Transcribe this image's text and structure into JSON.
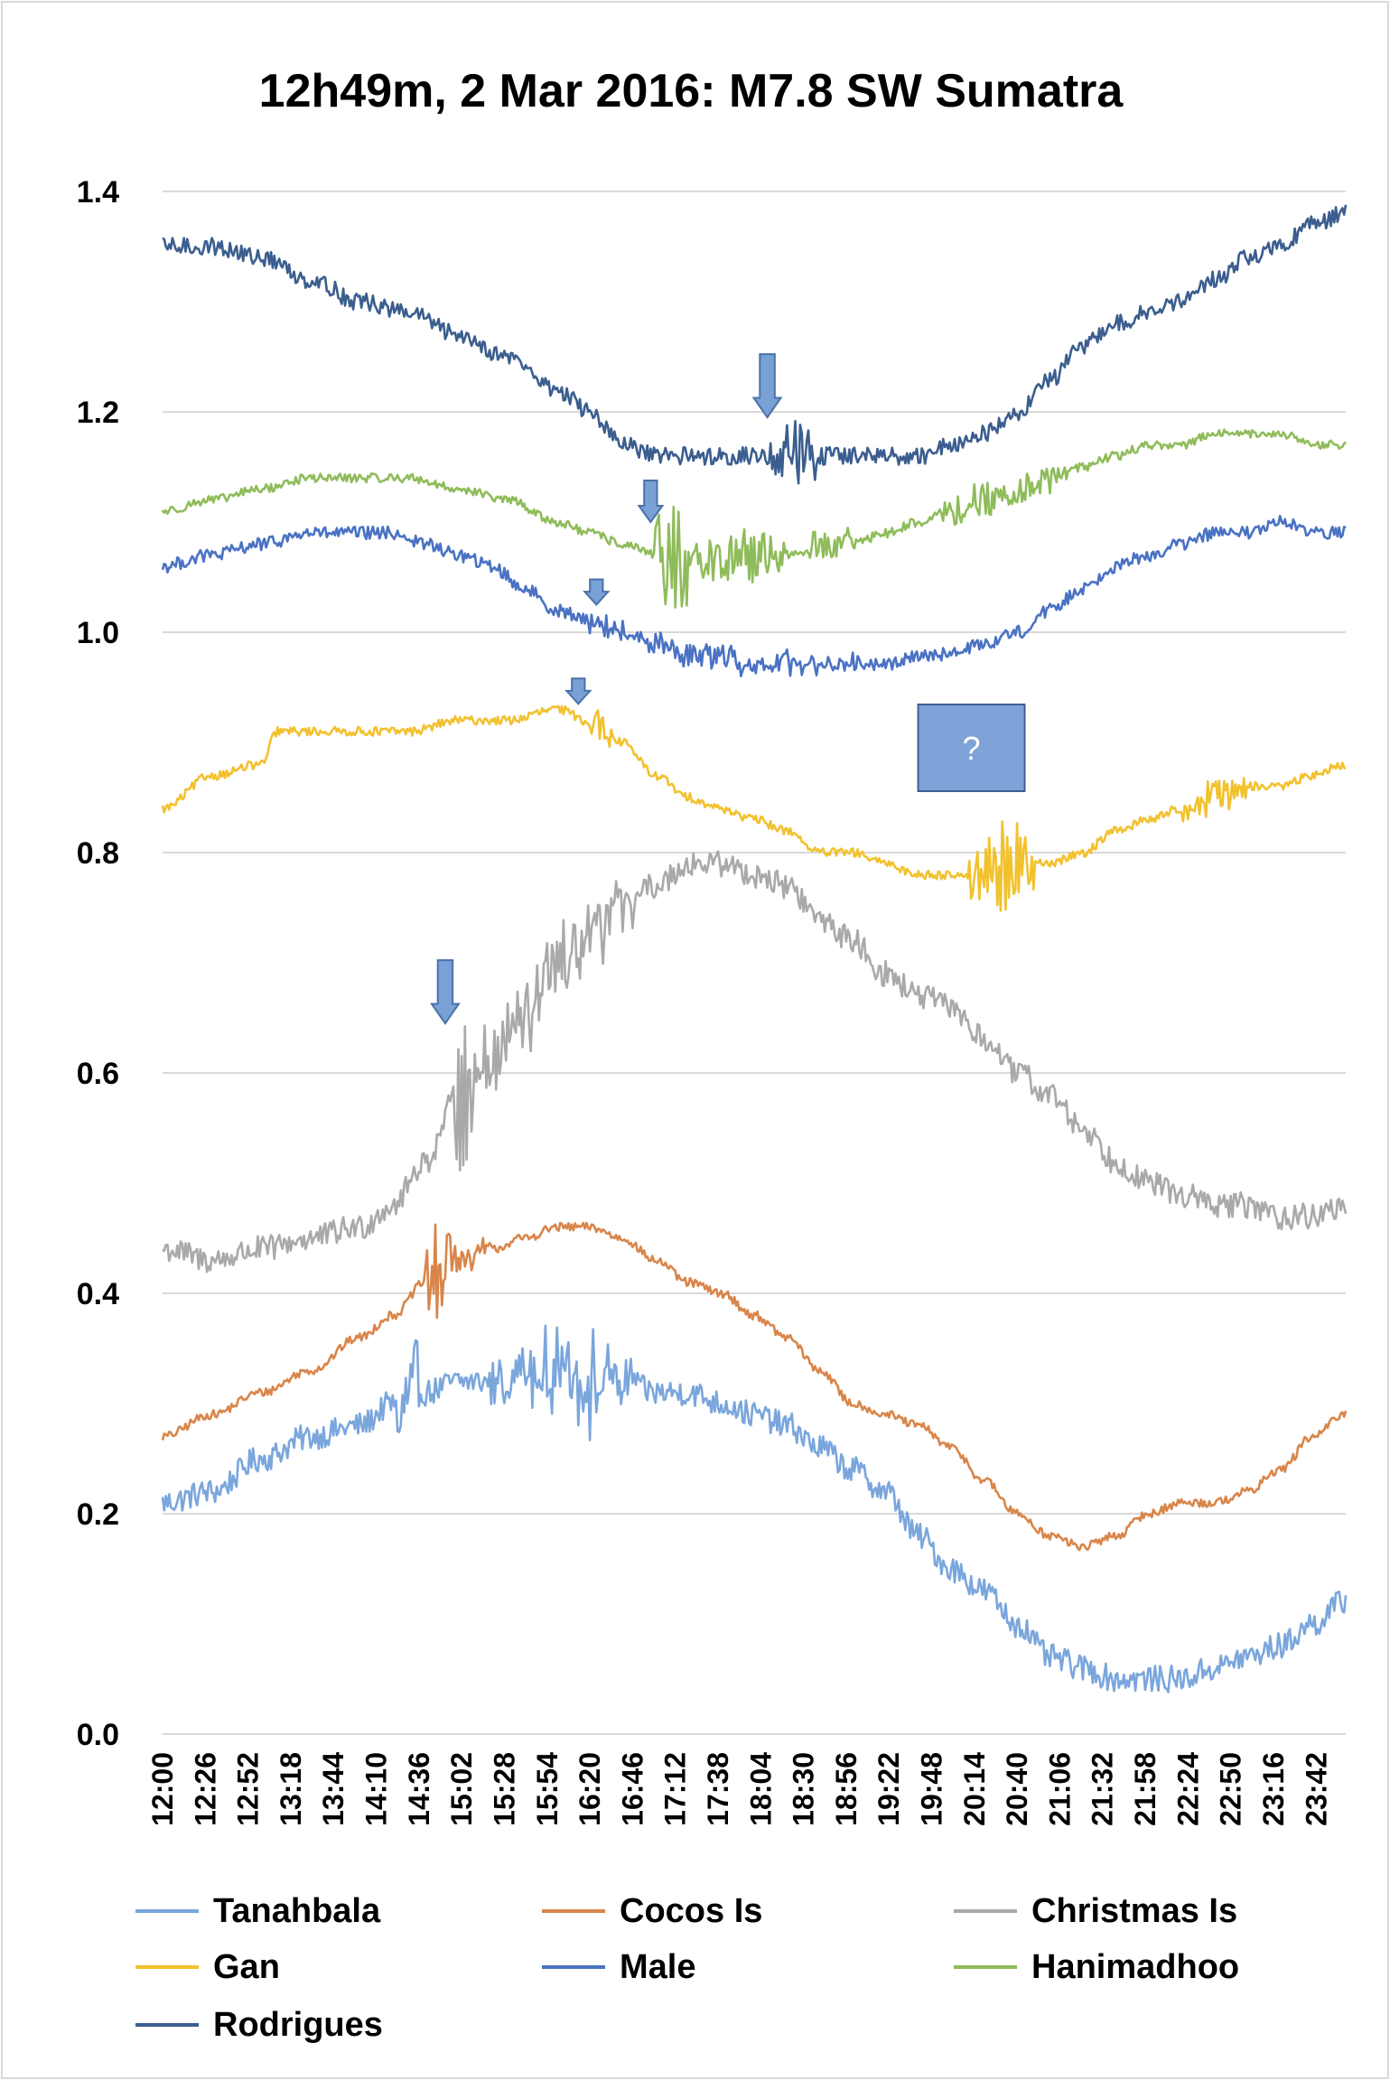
{
  "chart_data": {
    "type": "line",
    "title": "12h49m, 2 Mar 2016: M7.8 SW Sumatra",
    "xlabel": "",
    "ylabel": "",
    "ylim": [
      0,
      1.4
    ],
    "xlim_hours": [
      12.0,
      24.0
    ],
    "y_ticks": [
      "0.0",
      "0.2",
      "0.4",
      "0.6",
      "0.8",
      "1.0",
      "1.2",
      "1.4"
    ],
    "x_tick_labels": [
      "12:00",
      "12:26",
      "12:52",
      "13:18",
      "13:44",
      "14:10",
      "14:36",
      "15:02",
      "15:28",
      "15:54",
      "16:20",
      "16:46",
      "17:12",
      "17:38",
      "18:04",
      "18:30",
      "18:56",
      "19:22",
      "19:48",
      "20:14",
      "20:40",
      "21:06",
      "21:32",
      "21:58",
      "22:24",
      "22:50",
      "23:16",
      "23:42"
    ],
    "grid": "horizontal",
    "legend_position": "bottom",
    "series": [
      {
        "name": "Tanahbala",
        "color": "#7aa6dc",
        "x": [
          "12:00",
          "12:30",
          "13:00",
          "13:30",
          "14:00",
          "14:20",
          "14:40",
          "15:00",
          "15:20",
          "15:40",
          "16:00",
          "16:20",
          "16:40",
          "17:00",
          "17:20",
          "17:40",
          "18:00",
          "18:20",
          "18:40",
          "19:00",
          "19:20",
          "19:40",
          "20:00",
          "20:20",
          "20:40",
          "21:00",
          "21:20",
          "21:40",
          "22:00",
          "22:20",
          "22:40",
          "23:00",
          "23:20",
          "23:40",
          "23:59"
        ],
        "values": [
          0.21,
          0.22,
          0.25,
          0.27,
          0.28,
          0.3,
          0.31,
          0.32,
          0.32,
          0.33,
          0.33,
          0.32,
          0.32,
          0.31,
          0.31,
          0.3,
          0.29,
          0.28,
          0.26,
          0.24,
          0.22,
          0.18,
          0.15,
          0.13,
          0.1,
          0.07,
          0.06,
          0.05,
          0.05,
          0.05,
          0.06,
          0.07,
          0.08,
          0.1,
          0.12
        ],
        "noise": 0.012,
        "bursts": [
          {
            "at": "14:22",
            "dur_min": 14,
            "amp": 0.06
          },
          {
            "at": "15:20",
            "dur_min": 70,
            "amp": 0.03
          },
          {
            "at": "16:10",
            "dur_min": 40,
            "amp": 0.025
          }
        ]
      },
      {
        "name": "Cocos Is",
        "color": "#d9854a",
        "x": [
          "12:00",
          "12:30",
          "13:00",
          "13:30",
          "14:00",
          "14:20",
          "14:40",
          "15:00",
          "15:20",
          "15:40",
          "16:00",
          "16:20",
          "16:40",
          "17:00",
          "17:20",
          "17:40",
          "18:00",
          "18:20",
          "18:40",
          "19:00",
          "19:20",
          "19:40",
          "20:00",
          "20:20",
          "20:40",
          "21:00",
          "21:20",
          "21:40",
          "22:00",
          "22:20",
          "22:40",
          "23:00",
          "23:20",
          "23:40",
          "23:59"
        ],
        "values": [
          0.27,
          0.29,
          0.31,
          0.33,
          0.36,
          0.38,
          0.41,
          0.43,
          0.44,
          0.45,
          0.46,
          0.46,
          0.45,
          0.43,
          0.41,
          0.4,
          0.38,
          0.36,
          0.33,
          0.3,
          0.29,
          0.28,
          0.26,
          0.23,
          0.2,
          0.18,
          0.17,
          0.18,
          0.2,
          0.21,
          0.21,
          0.22,
          0.24,
          0.27,
          0.29
        ],
        "noise": 0.004,
        "bursts": [
          {
            "at": "14:40",
            "dur_min": 20,
            "amp": 0.05
          },
          {
            "at": "14:55",
            "dur_min": 25,
            "amp": 0.012
          }
        ]
      },
      {
        "name": "Christmas Is",
        "color": "#a9a9a9",
        "x": [
          "12:00",
          "12:30",
          "13:00",
          "13:30",
          "14:00",
          "14:20",
          "14:40",
          "15:00",
          "15:20",
          "15:40",
          "16:00",
          "16:20",
          "16:40",
          "17:00",
          "17:20",
          "17:40",
          "18:00",
          "18:20",
          "18:40",
          "19:00",
          "19:20",
          "19:40",
          "20:00",
          "20:20",
          "20:40",
          "21:00",
          "21:20",
          "21:40",
          "22:00",
          "22:20",
          "22:40",
          "23:00",
          "23:20",
          "23:40",
          "23:59"
        ],
        "values": [
          0.44,
          0.43,
          0.44,
          0.45,
          0.46,
          0.48,
          0.52,
          0.58,
          0.61,
          0.65,
          0.69,
          0.72,
          0.75,
          0.77,
          0.79,
          0.79,
          0.78,
          0.77,
          0.74,
          0.72,
          0.69,
          0.67,
          0.66,
          0.63,
          0.6,
          0.58,
          0.55,
          0.52,
          0.5,
          0.49,
          0.48,
          0.48,
          0.47,
          0.47,
          0.48
        ],
        "noise": 0.012,
        "bursts": [
          {
            "at": "14:58",
            "dur_min": 14,
            "amp": 0.08
          },
          {
            "at": "15:10",
            "dur_min": 60,
            "amp": 0.04
          },
          {
            "at": "16:00",
            "dur_min": 50,
            "amp": 0.025
          }
        ]
      },
      {
        "name": "Gan",
        "color": "#f2c12e",
        "x": [
          "12:00",
          "12:30",
          "13:00",
          "13:10",
          "13:30",
          "14:00",
          "14:30",
          "15:00",
          "15:30",
          "16:00",
          "16:20",
          "16:40",
          "17:00",
          "17:20",
          "17:40",
          "18:00",
          "18:20",
          "18:40",
          "19:00",
          "19:20",
          "19:40",
          "20:00",
          "20:20",
          "20:40",
          "21:00",
          "21:20",
          "21:40",
          "22:00",
          "22:20",
          "22:40",
          "23:00",
          "23:20",
          "23:40",
          "23:59"
        ],
        "values": [
          0.84,
          0.87,
          0.88,
          0.91,
          0.91,
          0.91,
          0.91,
          0.92,
          0.92,
          0.93,
          0.92,
          0.9,
          0.87,
          0.85,
          0.84,
          0.83,
          0.82,
          0.8,
          0.8,
          0.79,
          0.78,
          0.78,
          0.78,
          0.79,
          0.79,
          0.8,
          0.82,
          0.83,
          0.84,
          0.85,
          0.86,
          0.86,
          0.87,
          0.88
        ],
        "noise": 0.004,
        "bursts": [
          {
            "at": "16:15",
            "dur_min": 20,
            "amp": 0.012
          },
          {
            "at": "20:10",
            "dur_min": 40,
            "amp": 0.04
          },
          {
            "at": "22:20",
            "dur_min": 40,
            "amp": 0.015
          }
        ]
      },
      {
        "name": "Male",
        "color": "#4a72c4",
        "x": [
          "12:00",
          "12:30",
          "13:00",
          "13:30",
          "14:00",
          "14:20",
          "14:40",
          "15:00",
          "15:20",
          "15:40",
          "16:00",
          "16:20",
          "16:40",
          "17:00",
          "17:20",
          "17:40",
          "18:00",
          "18:20",
          "18:40",
          "19:00",
          "19:20",
          "19:40",
          "20:00",
          "20:20",
          "20:40",
          "21:00",
          "21:20",
          "21:40",
          "22:00",
          "22:20",
          "22:40",
          "23:00",
          "23:20",
          "23:40",
          "23:59"
        ],
        "values": [
          1.06,
          1.07,
          1.08,
          1.09,
          1.09,
          1.09,
          1.08,
          1.07,
          1.06,
          1.04,
          1.02,
          1.01,
          1.0,
          0.99,
          0.98,
          0.98,
          0.97,
          0.97,
          0.97,
          0.97,
          0.97,
          0.98,
          0.98,
          0.99,
          1.0,
          1.02,
          1.04,
          1.06,
          1.07,
          1.08,
          1.09,
          1.09,
          1.1,
          1.09,
          1.09
        ],
        "noise": 0.006,
        "bursts": [
          {
            "at": "16:20",
            "dur_min": 170,
            "amp": 0.01
          }
        ]
      },
      {
        "name": "Hanimadhoo",
        "color": "#8fbc5a",
        "x": [
          "12:00",
          "12:30",
          "13:00",
          "13:30",
          "14:00",
          "14:30",
          "15:00",
          "15:30",
          "16:00",
          "16:20",
          "16:40",
          "17:00",
          "17:20",
          "17:40",
          "18:00",
          "18:20",
          "18:40",
          "19:00",
          "19:20",
          "19:40",
          "20:00",
          "20:20",
          "20:40",
          "21:00",
          "21:20",
          "21:40",
          "22:00",
          "22:20",
          "22:40",
          "23:00",
          "23:20",
          "23:40",
          "23:59"
        ],
        "values": [
          1.11,
          1.12,
          1.13,
          1.14,
          1.14,
          1.14,
          1.13,
          1.12,
          1.1,
          1.09,
          1.08,
          1.07,
          1.06,
          1.07,
          1.07,
          1.07,
          1.08,
          1.08,
          1.09,
          1.1,
          1.11,
          1.12,
          1.13,
          1.14,
          1.15,
          1.16,
          1.17,
          1.17,
          1.18,
          1.18,
          1.18,
          1.17,
          1.17
        ],
        "noise": 0.004,
        "bursts": [
          {
            "at": "17:00",
            "dur_min": 20,
            "amp": 0.06
          },
          {
            "at": "17:20",
            "dur_min": 60,
            "amp": 0.025
          },
          {
            "at": "18:30",
            "dur_min": 30,
            "amp": 0.015
          },
          {
            "at": "19:50",
            "dur_min": 80,
            "amp": 0.015
          }
        ]
      },
      {
        "name": "Rodrigues",
        "color": "#3b5e8f",
        "x": [
          "12:00",
          "12:30",
          "13:00",
          "13:30",
          "14:00",
          "14:30",
          "15:00",
          "15:30",
          "16:00",
          "16:20",
          "16:40",
          "17:00",
          "17:20",
          "17:40",
          "18:00",
          "18:20",
          "18:40",
          "19:00",
          "19:20",
          "19:40",
          "20:00",
          "20:20",
          "20:40",
          "21:00",
          "21:20",
          "21:40",
          "22:00",
          "22:20",
          "22:40",
          "23:00",
          "23:20",
          "23:40",
          "23:59"
        ],
        "values": [
          1.35,
          1.35,
          1.34,
          1.32,
          1.3,
          1.29,
          1.27,
          1.25,
          1.22,
          1.2,
          1.17,
          1.16,
          1.16,
          1.16,
          1.16,
          1.16,
          1.16,
          1.16,
          1.16,
          1.16,
          1.17,
          1.18,
          1.2,
          1.23,
          1.26,
          1.28,
          1.29,
          1.3,
          1.32,
          1.34,
          1.35,
          1.37,
          1.38
        ],
        "noise": 0.008,
        "bursts": [
          {
            "at": "18:10",
            "dur_min": 30,
            "amp": 0.025
          }
        ]
      }
    ],
    "annotations": {
      "arrows": [
        {
          "series": "Rodrigues",
          "at": "18:08",
          "tip_value": 1.195,
          "size": "large"
        },
        {
          "series": "Hanimadhoo",
          "at": "16:57",
          "tip_value": 1.1,
          "size": "medium"
        },
        {
          "series": "Male",
          "at": "16:24",
          "tip_value": 1.025,
          "size": "small"
        },
        {
          "series": "Gan",
          "at": "16:13",
          "tip_value": 0.935,
          "size": "small"
        },
        {
          "series": "Christmas Is",
          "at": "14:52",
          "tip_value": 0.645,
          "size": "large"
        }
      ],
      "box_label": "?",
      "box_near": "Gan",
      "box_at": "20:10"
    }
  }
}
